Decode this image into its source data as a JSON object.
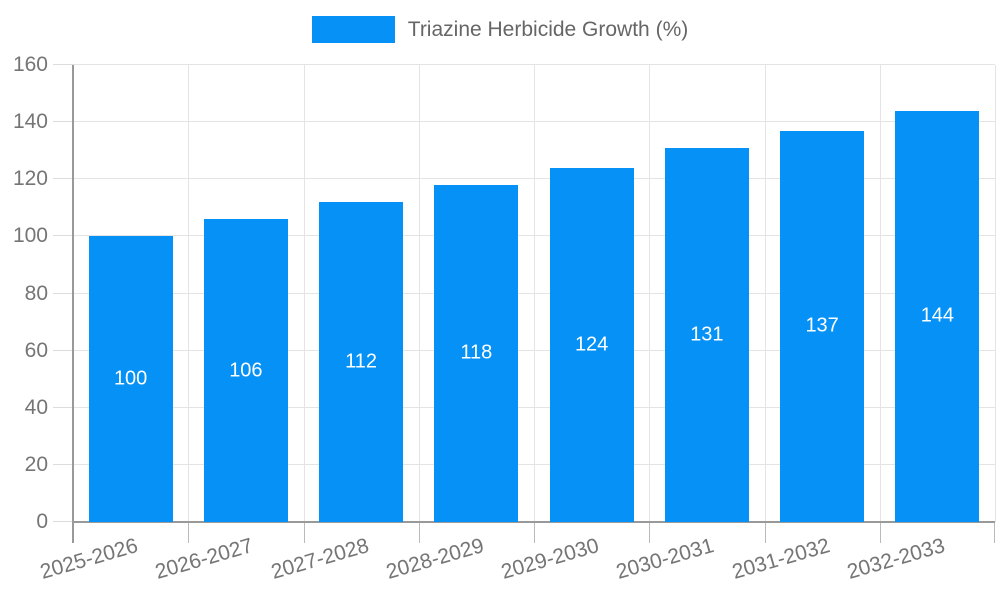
{
  "legend": {
    "label": "Triazine Herbicide Growth (%)"
  },
  "colors": {
    "bar": "#0591f5",
    "axis_line": "#999999",
    "grid_line": "#e4e4e4",
    "y_tick_line": "#dcdcdc",
    "x_tick_line": "#bbbbbb",
    "axis_label": "#757575",
    "legend_text": "#666666",
    "bar_label": "#ffffff",
    "background": "#ffffff"
  },
  "chart_data": {
    "type": "bar",
    "title": "",
    "xlabel": "",
    "ylabel": "",
    "categories": [
      "2025-2026",
      "2026-2027",
      "2027-2028",
      "2028-2029",
      "2029-2030",
      "2030-2031",
      "2031-2032",
      "2032-2033"
    ],
    "series": [
      {
        "name": "Triazine Herbicide Growth (%)",
        "values": [
          100,
          106,
          112,
          118,
          124,
          131,
          137,
          144
        ]
      }
    ],
    "ylim": [
      0,
      160
    ],
    "ytick_interval": 20,
    "yticks": [
      0,
      20,
      40,
      60,
      80,
      100,
      120,
      140,
      160
    ],
    "grid": true,
    "legend_position": "top-center",
    "value_label_position": "inside-center",
    "x_label_rotation_deg": -16
  }
}
